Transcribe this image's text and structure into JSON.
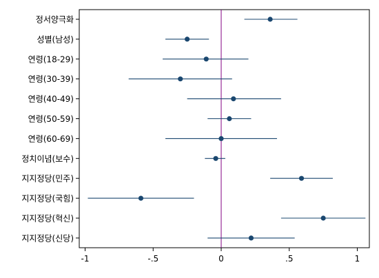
{
  "chart_data": {
    "type": "scatter",
    "subtype": "coefficient-plot-with-confidence-intervals",
    "title": "",
    "xlabel": "",
    "ylabel": "",
    "xlim": [
      -1.02,
      1.1
    ],
    "x_ticks": [
      -1,
      -0.5,
      0,
      0.5,
      1
    ],
    "x_tick_labels": [
      "-1",
      "-.5",
      "0",
      ".5",
      "1"
    ],
    "reference_line_x": 0,
    "grid": false,
    "legend": "none",
    "colors": {
      "point": "#1a476f",
      "ci_line": "#1a476f",
      "reference_line": "#800080",
      "frame": "#000000"
    },
    "rows": [
      {
        "label": "정서양극화",
        "estimate": 0.36,
        "ci_low": 0.17,
        "ci_high": 0.56
      },
      {
        "label": "성별(남성)",
        "estimate": -0.25,
        "ci_low": -0.41,
        "ci_high": -0.09
      },
      {
        "label": "연령(18-29)",
        "estimate": -0.11,
        "ci_low": -0.43,
        "ci_high": 0.2
      },
      {
        "label": "연령(30-39)",
        "estimate": -0.3,
        "ci_low": -0.68,
        "ci_high": 0.08
      },
      {
        "label": "연령(40-49)",
        "estimate": 0.09,
        "ci_low": -0.25,
        "ci_high": 0.44
      },
      {
        "label": "연령(50-59)",
        "estimate": 0.06,
        "ci_low": -0.1,
        "ci_high": 0.22
      },
      {
        "label": "연령(60-69)",
        "estimate": 0.0,
        "ci_low": -0.41,
        "ci_high": 0.41
      },
      {
        "label": "정치이념(보수)",
        "estimate": -0.04,
        "ci_low": -0.12,
        "ci_high": 0.03
      },
      {
        "label": "지지정당(민주)",
        "estimate": 0.59,
        "ci_low": 0.36,
        "ci_high": 0.82
      },
      {
        "label": "지지정당(국힘)",
        "estimate": -0.59,
        "ci_low": -0.98,
        "ci_high": -0.2
      },
      {
        "label": "지지정당(혁신)",
        "estimate": 0.75,
        "ci_low": 0.44,
        "ci_high": 1.06
      },
      {
        "label": "지지정당(신당)",
        "estimate": 0.22,
        "ci_low": -0.1,
        "ci_high": 0.54
      }
    ]
  }
}
